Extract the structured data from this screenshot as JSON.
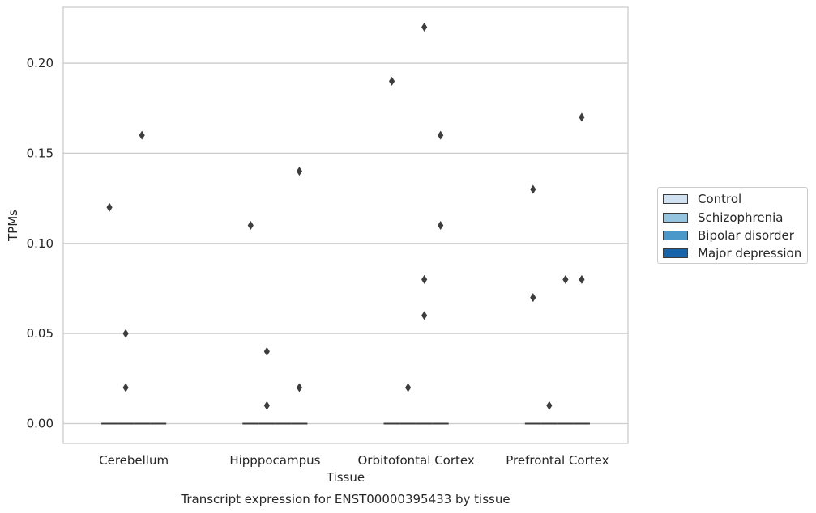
{
  "chart_data": {
    "type": "box",
    "title": "",
    "caption": "Transcript expression for ENST00000395433 by tissue",
    "xlabel": "Tissue",
    "ylabel": "TPMs",
    "ylim": [
      -0.011,
      0.231
    ],
    "yticks": [
      0.0,
      0.05,
      0.1,
      0.15,
      0.2
    ],
    "ytick_labels": [
      "0.00",
      "0.05",
      "0.10",
      "0.15",
      "0.20"
    ],
    "grid": "horizontal",
    "legend_position": "right",
    "categories": [
      "Cerebellum",
      "Hipppocampus",
      "Orbitofontal Cortex",
      "Prefrontal Cortex"
    ],
    "series": [
      {
        "name": "Control",
        "color": "#d0e1f2",
        "median": [
          0,
          0,
          0,
          0
        ],
        "outliers": [
          [
            0.12
          ],
          [
            0.11
          ],
          [
            0.19
          ],
          [
            0.13,
            0.07
          ]
        ]
      },
      {
        "name": "Schizophrenia",
        "color": "#94c4df",
        "median": [
          0,
          0,
          0,
          0
        ],
        "outliers": [
          [
            0.05,
            0.02
          ],
          [
            0.04,
            0.01
          ],
          [
            0.02
          ],
          [
            0.01
          ]
        ]
      },
      {
        "name": "Bipolar disorder",
        "color": "#4a98c9",
        "median": [
          0,
          0,
          0,
          0
        ],
        "outliers": [
          [
            0.16
          ],
          [],
          [
            0.22,
            0.08,
            0.06
          ],
          [
            0.08
          ]
        ]
      },
      {
        "name": "Major depression",
        "color": "#1764ab",
        "median": [
          0,
          0,
          0,
          0
        ],
        "outliers": [
          [],
          [
            0.14,
            0.02
          ],
          [
            0.16,
            0.11
          ],
          [
            0.17,
            0.08
          ]
        ]
      }
    ]
  }
}
